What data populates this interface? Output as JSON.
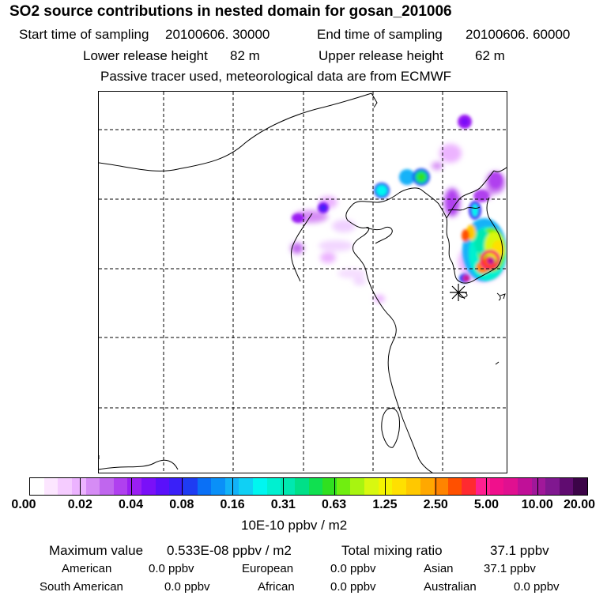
{
  "title": "SO2 source contributions in nested domain for gosan_201006",
  "header": {
    "start_label": "Start time of sampling",
    "start_value": "20100606. 30000",
    "end_label": "End time of sampling",
    "end_value": "20100606. 60000",
    "lower_label": "Lower release height",
    "lower_value": "82 m",
    "upper_label": "Upper release height",
    "upper_value": "62 m",
    "note": "Passive tracer used, meteorological data are from ECMWF"
  },
  "colorbar": {
    "colors": [
      "#ffffff",
      "#fce6ff",
      "#f5ccff",
      "#ecb3ff",
      "#d68cf5",
      "#c066ee",
      "#b040ef",
      "#9a1ff2",
      "#7a10f8",
      "#5a10fa",
      "#3a20f8",
      "#1e3cf2",
      "#0a70f6",
      "#0a90f8",
      "#12b2f8",
      "#10d0f4",
      "#00f6f0",
      "#00f0d0",
      "#00e8b0",
      "#00e088",
      "#10e050",
      "#30e020",
      "#70ee10",
      "#a8f410",
      "#d8f810",
      "#f4f400",
      "#ffe000",
      "#ffc800",
      "#ffa800",
      "#ff8400",
      "#ff5000",
      "#ff2a30",
      "#ff2090",
      "#f0108c",
      "#e01090",
      "#c01098",
      "#a0189a",
      "#801890",
      "#600c70",
      "#3c0448"
    ],
    "tick_labels": [
      "0.00",
      "0.02",
      "0.04",
      "0.08",
      "0.16",
      "0.31",
      "0.63",
      "1.25",
      "2.50",
      "5.00",
      "10.00",
      "20.00"
    ],
    "units": "10E-10 ppbv / m2"
  },
  "summary": {
    "max_label": "Maximum value",
    "max_value": "0.533E-08 ppbv / m2",
    "total_label": "Total mixing ratio",
    "total_value": "37.1 ppbv",
    "regions": [
      {
        "name": "American",
        "value": "0.0 ppbv"
      },
      {
        "name": "European",
        "value": "0.0 ppbv"
      },
      {
        "name": "Asian",
        "value": "37.1 ppbv"
      },
      {
        "name": "South American",
        "value": "0.0 ppbv"
      },
      {
        "name": "African",
        "value": "0.0 ppbv"
      },
      {
        "name": "Australian",
        "value": "0.0 ppbv"
      }
    ]
  }
}
